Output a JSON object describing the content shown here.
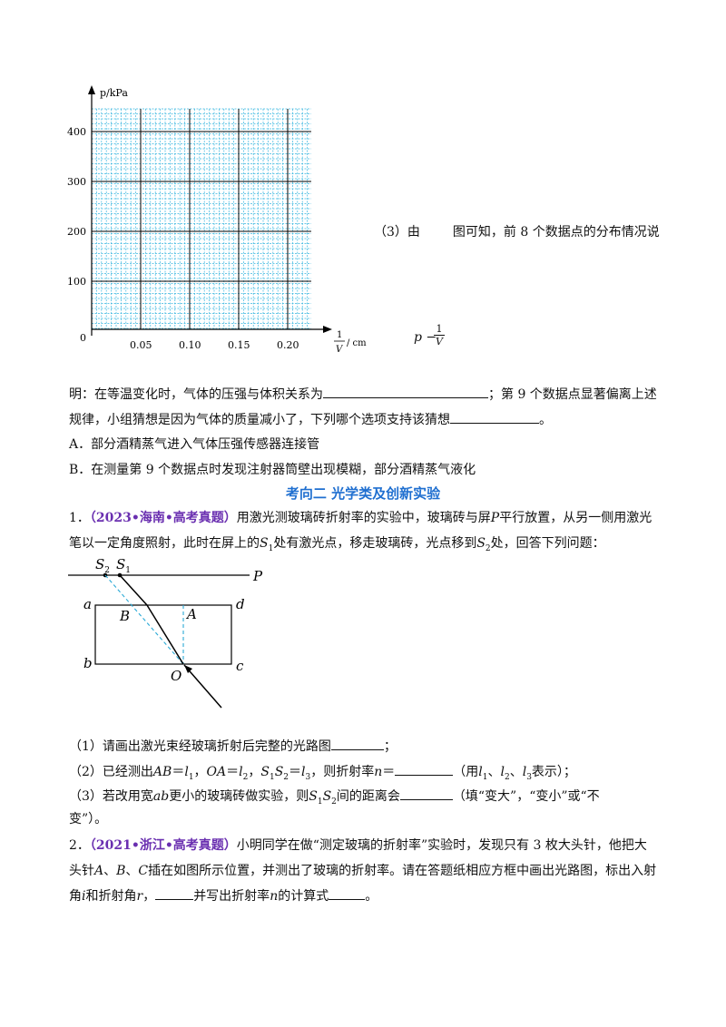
{
  "graph": {
    "y_axis_label": "p/kPa",
    "y_ticks": [
      "400",
      "300",
      "200",
      "100"
    ],
    "origin": "0",
    "x_ticks": [
      "0.05",
      "0.10",
      "0.15",
      "0.20"
    ],
    "x_axis_label_num": "1",
    "x_axis_label_den": "V",
    "x_axis_unit": "/ cm"
  },
  "side_label": {
    "p": "p",
    "minus": "−",
    "num": "1",
    "den": "V"
  },
  "q3_prefix": "（3）由",
  "q3_suffix": "图可知，前 8 个数据点的分布情况说",
  "line1_a": "明：在等温变化时，气体的压强与体积关系为",
  "line1_b": "；第 9 个数据点显著偏离上述",
  "line2_a": "规律，小组猜想是因为气体的质量减小了，下列哪个选项支持该猜想",
  "line2_b": "。",
  "optA": "A．部分酒精蒸气进入气体压强传感器连接管",
  "optB": "B．在测量第 9 个数据点时发现注射器筒壁出现模糊，部分酒精蒸气液化",
  "section_heading": "考向二  光学类及创新实验",
  "p1": {
    "num": "1．",
    "tag": "（2023•海南•高考真题）",
    "text1": "用激光测玻璃砖折射率的实验中，玻璃砖与屏",
    "P": "P",
    "text2": "平行放置，从另一侧用激光",
    "text3a": "笔以一定角度照射，此时在屏上的",
    "S1": "S",
    "sub1": "1",
    "text3b": "处有激光点，移走玻璃砖，光点移到",
    "S2": "S",
    "sub2": "2",
    "text3c": "处，回答下列问题："
  },
  "diagram": {
    "S2": "S",
    "S2sub": "2",
    "S1": "S",
    "S1sub": "1",
    "P": "P",
    "a": "a",
    "d": "d",
    "B": "B",
    "A": "A",
    "b": "b",
    "c": "c",
    "O": "O"
  },
  "q1": {
    "text": "（1）请画出激光束经玻璃折射后完整的光路图",
    "end": "；"
  },
  "q2": {
    "t1": "（2）已经测出",
    "AB": "AB",
    "eq1": "＝",
    "l1": "l",
    "l1s": "1",
    "c1": "，",
    "OA": "OA",
    "eq2": "＝",
    "l2": "l",
    "l2s": "2",
    "c2": "，",
    "S1S2": "S",
    "S1S2a": "1",
    "S1S2b": "S",
    "S1S2c": "2",
    "eq3": "＝",
    "l3": "l",
    "l3s": "3",
    "t2": "，则折射率",
    "n": "n",
    "eq4": "＝",
    "t3": "（用",
    "m1": "l",
    "m1s": "1",
    "sep1": "、",
    "m2": "l",
    "m2s": "2",
    "sep2": "、",
    "m3": "l",
    "m3s": "3",
    "t4": "表示）；"
  },
  "q3b": {
    "t1": "（3）若改用宽",
    "ab": "ab",
    "t2": "更小的玻璃砖做实验，则",
    "S": "S",
    "s1": "1",
    "S_": "S",
    "s2": "2",
    "t3": "间的距离会",
    "t4": "（填“变大”，“变小”或“不",
    "t5": "变”）。"
  },
  "p2": {
    "num": "2．",
    "tag": "（2021•浙江•高考真题）",
    "text1": "小明同学在做“测定玻璃的折射率”实验时，发现只有 3 枚大头针，他把大",
    "text2a": "头针",
    "A": "A",
    "sep1": "、",
    "B": "B",
    "sep2": "、",
    "C": "C",
    "text2b": "插在如图所示位置，并测出了玻璃的折射率。请在答题纸相应方框中画出光路图，标出入射",
    "text3a": "角",
    "i": "i",
    "text3b": "和折射角",
    "r": "r",
    "text3c": "，",
    "text3d": "并写出折射率",
    "n": "n",
    "text3e": "的计算式",
    "text3f": "。"
  }
}
